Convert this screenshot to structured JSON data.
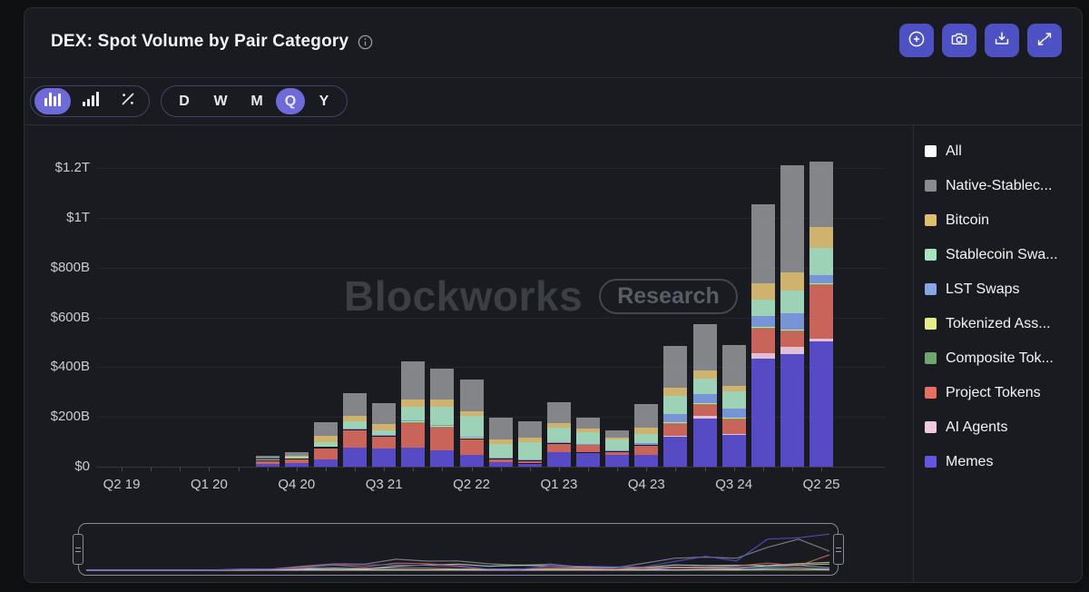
{
  "header": {
    "title": "DEX: Spot Volume by Pair Category",
    "actions": [
      {
        "name": "zoom-in",
        "icon": "plus-circle-icon"
      },
      {
        "name": "screenshot",
        "icon": "camera-icon"
      },
      {
        "name": "download",
        "icon": "download-tray-icon"
      },
      {
        "name": "fullscreen",
        "icon": "expand-arrows-icon"
      }
    ]
  },
  "toolbar": {
    "chart_type": {
      "options": [
        "stacked-bar",
        "grouped-bar",
        "percent"
      ],
      "selected": "stacked-bar"
    },
    "interval": {
      "options": [
        "D",
        "W",
        "M",
        "Q",
        "Y"
      ],
      "selected": "Q"
    }
  },
  "watermark": {
    "brand": "Blockworks",
    "badge": "Research"
  },
  "colors": {
    "panel_bg": "#191b20",
    "action_button": "#4d51c4",
    "selected_pill": "#6e6ada",
    "gridline": "#24262c"
  },
  "legend": [
    {
      "label": "All",
      "color": "#ffffff"
    },
    {
      "label": "Native-Stablec...",
      "color": "#8b8b8e"
    },
    {
      "label": "Bitcoin",
      "color": "#ddbe71"
    },
    {
      "label": "Stablecoin Swa...",
      "color": "#a6e3c1"
    },
    {
      "label": "LST Swaps",
      "color": "#86a6e8"
    },
    {
      "label": "Tokenized Ass...",
      "color": "#e7ec8b"
    },
    {
      "label": "Composite Tok...",
      "color": "#6ea76e"
    },
    {
      "label": "Project Tokens",
      "color": "#e76f61"
    },
    {
      "label": "AI Agents",
      "color": "#eccbe2"
    },
    {
      "label": "Memes",
      "color": "#6355e0"
    }
  ],
  "chart_data": {
    "type": "bar",
    "stacked": true,
    "title": "DEX: Spot Volume by Pair Category",
    "unit": "USD billions per quarter",
    "ylim": [
      0,
      1200
    ],
    "ytick_values": [
      0,
      200,
      400,
      600,
      800,
      1000,
      1200
    ],
    "ytick_labels": [
      "$0",
      "$200B",
      "$400B",
      "$600B",
      "$800B",
      "$1T",
      "$1.2T"
    ],
    "xtick_labels_shown": [
      "Q2 19",
      "Q1 20",
      "Q4 20",
      "Q3 21",
      "Q2 22",
      "Q1 23",
      "Q4 23",
      "Q3 24",
      "Q2 25"
    ],
    "legend_position": "right",
    "grid": true,
    "categories": [
      "Q2 19",
      "Q3 19",
      "Q4 19",
      "Q1 20",
      "Q2 20",
      "Q3 20",
      "Q4 20",
      "Q1 21",
      "Q2 21",
      "Q3 21",
      "Q4 21",
      "Q1 22",
      "Q2 22",
      "Q3 22",
      "Q4 22",
      "Q1 23",
      "Q2 23",
      "Q3 23",
      "Q4 23",
      "Q1 24",
      "Q2 24",
      "Q3 24",
      "Q4 24",
      "Q1 25",
      "Q2 25"
    ],
    "series": [
      {
        "name": "Memes",
        "color": "#5a4ecf",
        "values": [
          0,
          0,
          0,
          0,
          1,
          10,
          14,
          29,
          76,
          73,
          76,
          65,
          47,
          18,
          12,
          58,
          55,
          47,
          47,
          120,
          193,
          127,
          433,
          451,
          502
        ]
      },
      {
        "name": "AI Agents",
        "color": "#ecc9df",
        "values": [
          0,
          0,
          0,
          0,
          0,
          1,
          1,
          1,
          1,
          1,
          2,
          2,
          2,
          1,
          1,
          2,
          2,
          2,
          2,
          4,
          11,
          6,
          22,
          29,
          11
        ]
      },
      {
        "name": "Project Tokens",
        "color": "#d2685e",
        "values": [
          0,
          0,
          0,
          1,
          2,
          12,
          16,
          44,
          69,
          47,
          98,
          91,
          62,
          11,
          10,
          33,
          29,
          10,
          36,
          47,
          44,
          58,
          98,
          62,
          215
        ]
      },
      {
        "name": "Composite Tok...",
        "color": "#6ea76e",
        "values": [
          0,
          0,
          0,
          0,
          0,
          1,
          1,
          2,
          2,
          2,
          3,
          3,
          2,
          2,
          2,
          2,
          2,
          2,
          2,
          3,
          3,
          3,
          4,
          4,
          4
        ]
      },
      {
        "name": "Tokenized Ass...",
        "color": "#dfe48a",
        "values": [
          0,
          0,
          0,
          0,
          0,
          0,
          1,
          2,
          2,
          2,
          3,
          3,
          3,
          2,
          2,
          2,
          2,
          2,
          2,
          3,
          3,
          3,
          5,
          5,
          5
        ]
      },
      {
        "name": "LST Swaps",
        "color": "#7d9be0",
        "values": [
          0,
          0,
          0,
          0,
          0,
          1,
          1,
          2,
          3,
          3,
          4,
          4,
          4,
          3,
          3,
          3,
          3,
          3,
          5,
          36,
          36,
          36,
          44,
          65,
          33
        ]
      },
      {
        "name": "Stablecoin Swa...",
        "color": "#a5dcc0",
        "values": [
          0,
          0,
          0,
          0,
          1,
          4,
          5,
          18,
          29,
          18,
          55,
          73,
          84,
          55,
          69,
          58,
          44,
          42,
          36,
          73,
          65,
          69,
          65,
          91,
          109
        ]
      },
      {
        "name": "Bitcoin",
        "color": "#d8ba72",
        "values": [
          0,
          0,
          0,
          0,
          0,
          2,
          4,
          25,
          24,
          24,
          28,
          28,
          17,
          17,
          16,
          17,
          16,
          10,
          27,
          33,
          33,
          22,
          65,
          73,
          84
        ]
      },
      {
        "name": "Native-Stablec...",
        "color": "#8a8b8f",
        "values": [
          0,
          0,
          0,
          1,
          1,
          14,
          16,
          55,
          88,
          84,
          153,
          126,
          129,
          88,
          69,
          83,
          44,
          28,
          96,
          166,
          183,
          166,
          318,
          431,
          264
        ]
      }
    ]
  }
}
